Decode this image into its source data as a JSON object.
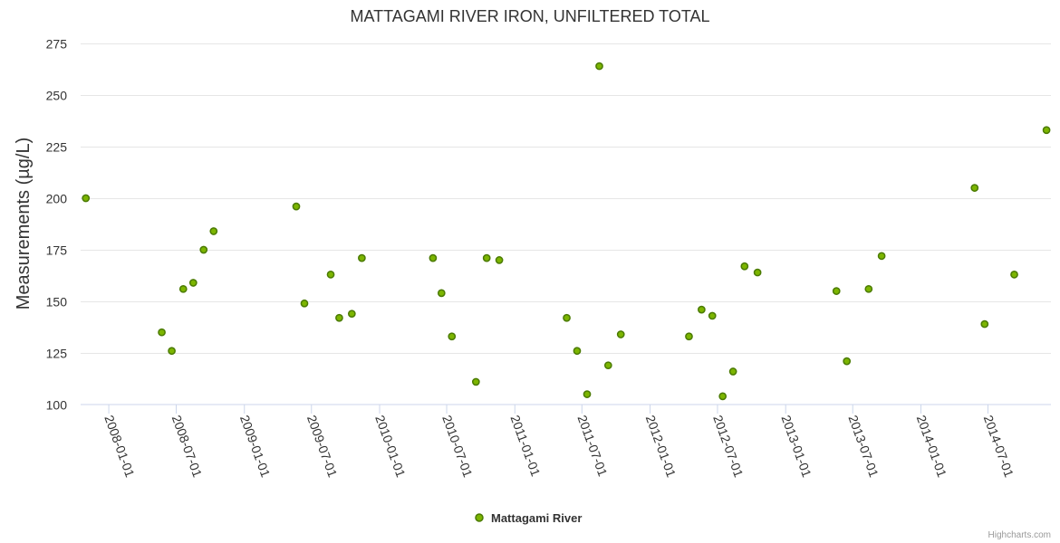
{
  "chart_data": {
    "type": "scatter",
    "title": "MATTAGAMI RIVER IRON, UNFILTERED TOTAL",
    "xlabel": "",
    "ylabel": "Measurements (µg/L)",
    "ylim": [
      100,
      275
    ],
    "yticks": [
      100,
      125,
      150,
      175,
      200,
      225,
      250,
      275
    ],
    "xlim": [
      "2007-10-17",
      "2014-12-18"
    ],
    "xticks": [
      "2008-01-01",
      "2008-07-01",
      "2009-01-01",
      "2009-07-01",
      "2010-01-01",
      "2010-07-01",
      "2011-01-01",
      "2011-07-01",
      "2012-01-01",
      "2012-07-01",
      "2013-01-01",
      "2013-07-01",
      "2014-01-01",
      "2014-07-01"
    ],
    "grid": true,
    "legend": "bottom-center",
    "series": [
      {
        "name": "Mattagami River",
        "color": "#7cb500",
        "stroke": "#4a7a00",
        "points": [
          {
            "x": "2007-10-31",
            "y": 200
          },
          {
            "x": "2008-05-23",
            "y": 135
          },
          {
            "x": "2008-06-19",
            "y": 126
          },
          {
            "x": "2008-07-20",
            "y": 156
          },
          {
            "x": "2008-08-16",
            "y": 159
          },
          {
            "x": "2008-09-13",
            "y": 175
          },
          {
            "x": "2008-10-10",
            "y": 184
          },
          {
            "x": "2009-05-21",
            "y": 196
          },
          {
            "x": "2009-06-12",
            "y": 149
          },
          {
            "x": "2009-08-22",
            "y": 163
          },
          {
            "x": "2009-09-14",
            "y": 142
          },
          {
            "x": "2009-10-18",
            "y": 144
          },
          {
            "x": "2009-11-14",
            "y": 171
          },
          {
            "x": "2010-05-25",
            "y": 171
          },
          {
            "x": "2010-06-17",
            "y": 154
          },
          {
            "x": "2010-07-15",
            "y": 133
          },
          {
            "x": "2010-09-18",
            "y": 111
          },
          {
            "x": "2010-10-17",
            "y": 171
          },
          {
            "x": "2010-11-20",
            "y": 170
          },
          {
            "x": "2011-05-21",
            "y": 142
          },
          {
            "x": "2011-06-18",
            "y": 126
          },
          {
            "x": "2011-07-15",
            "y": 105
          },
          {
            "x": "2011-08-17",
            "y": 264
          },
          {
            "x": "2011-09-10",
            "y": 119
          },
          {
            "x": "2011-10-14",
            "y": 134
          },
          {
            "x": "2012-04-15",
            "y": 133
          },
          {
            "x": "2012-05-19",
            "y": 146
          },
          {
            "x": "2012-06-17",
            "y": 143
          },
          {
            "x": "2012-07-15",
            "y": 104
          },
          {
            "x": "2012-08-12",
            "y": 116
          },
          {
            "x": "2012-09-12",
            "y": 167
          },
          {
            "x": "2012-10-17",
            "y": 164
          },
          {
            "x": "2013-05-18",
            "y": 155
          },
          {
            "x": "2013-06-15",
            "y": 121
          },
          {
            "x": "2013-08-13",
            "y": 156
          },
          {
            "x": "2013-09-17",
            "y": 172
          },
          {
            "x": "2014-05-26",
            "y": 205
          },
          {
            "x": "2014-06-22",
            "y": 139
          },
          {
            "x": "2014-09-10",
            "y": 163
          },
          {
            "x": "2014-12-06",
            "y": 233
          }
        ]
      }
    ]
  },
  "credits": "Highcharts.com"
}
